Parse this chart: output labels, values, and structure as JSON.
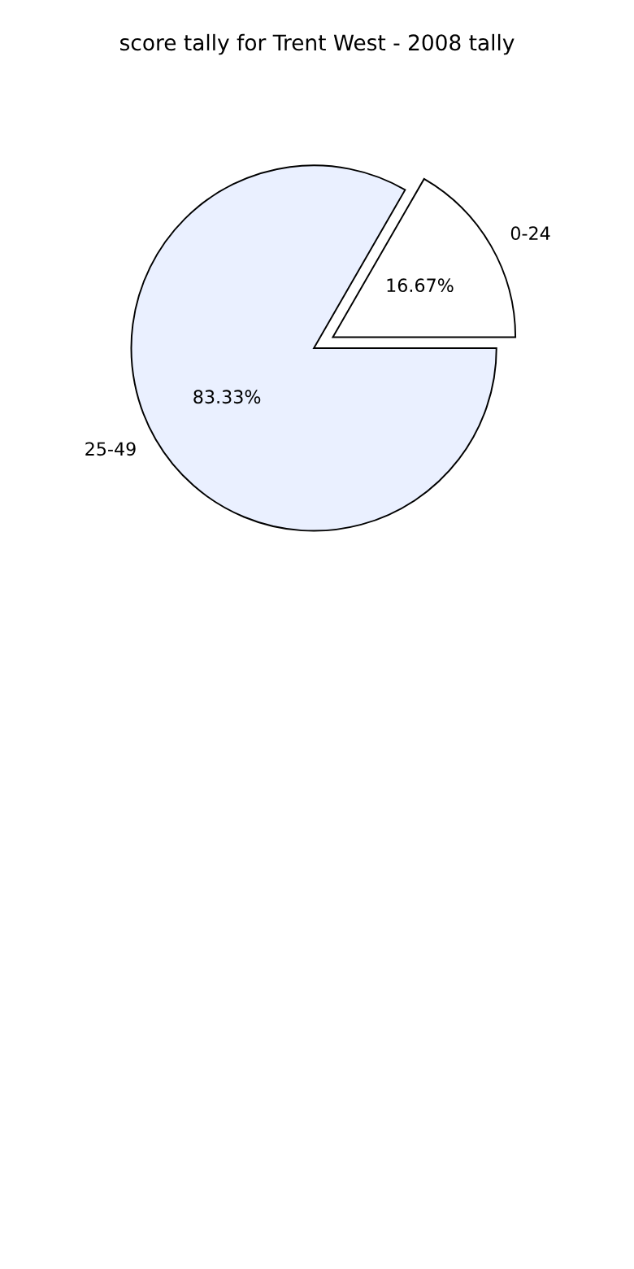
{
  "chart_data": {
    "type": "pie",
    "title": "score tally for Trent West - 2008 tally",
    "categories": [
      "0-24",
      "25-49"
    ],
    "values": [
      16.67,
      83.33
    ],
    "value_labels": [
      "16.67%",
      "83.33%"
    ],
    "colors": [
      "#ffffff",
      "#eaf0ff"
    ]
  }
}
